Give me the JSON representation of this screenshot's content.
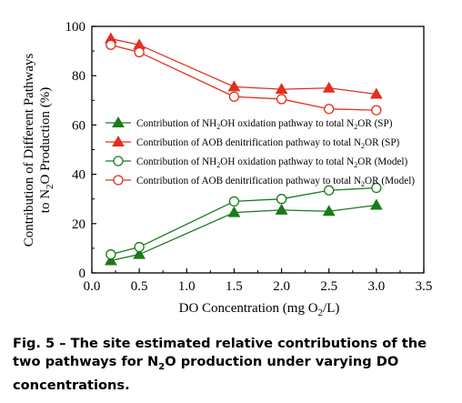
{
  "chart_data": {
    "type": "line",
    "x": [
      0.2,
      0.5,
      1.5,
      2.0,
      2.5,
      3.0
    ],
    "xlim": [
      0,
      3.5
    ],
    "ylim": [
      0,
      100
    ],
    "xticks": [
      "0.0",
      "0.5",
      "1.0",
      "1.5",
      "2.0",
      "2.5",
      "3.0",
      "3.5"
    ],
    "yticks": [
      "0",
      "20",
      "40",
      "60",
      "80",
      "100"
    ],
    "xlabel": {
      "pre": "DO Concentration (mg O",
      "sub": "2",
      "post": "/L)"
    },
    "ylabel": {
      "line1": "Contribution of Different Pathways",
      "line2_pre": "to N",
      "line2_sub": "2",
      "line2_post": "O Production (%)"
    },
    "legend_position": "center",
    "series": [
      {
        "key": "nh2oh-sp",
        "legend": {
          "pre": "Contribution of NH",
          "s1": "2",
          "mid": "OH oxidation pathway to total N",
          "s2": "2",
          "post": "OR (SP)"
        },
        "color": "#1a7a1a",
        "marker": "filled-triangle",
        "values": [
          5,
          7.5,
          24.5,
          25.5,
          25,
          27.5
        ]
      },
      {
        "key": "aob-sp",
        "legend": {
          "pre": "Contribution of AOB denitrification pathway to total N",
          "s1": "2",
          "mid": "OR (SP)",
          "s2": "",
          "post": ""
        },
        "color": "#e03020",
        "marker": "filled-triangle",
        "values": [
          95,
          92.5,
          75.5,
          74.5,
          75,
          72.5
        ]
      },
      {
        "key": "nh2oh-model",
        "legend": {
          "pre": "Contribution of  NH",
          "s1": "2",
          "mid": "OH oxidation pathway to total N",
          "s2": "2",
          "post": "OR (Model)"
        },
        "color": "#1a7a1a",
        "marker": "open-circle",
        "values": [
          7.5,
          10.5,
          29,
          30,
          33.5,
          34.5
        ]
      },
      {
        "key": "aob-model",
        "legend": {
          "pre": "Contribution of AOB denitrification pathway to total N",
          "s1": "2",
          "mid": "OR (Model)",
          "s2": "",
          "post": ""
        },
        "color": "#e03020",
        "marker": "open-circle",
        "values": [
          92.5,
          89.5,
          71.5,
          70.5,
          66.5,
          66
        ]
      }
    ]
  },
  "caption": {
    "fig": "Fig. 5",
    "dash": " – ",
    "text_pre": "The site estimated relative contributions of the two pathways for N",
    "sub": "2",
    "text_post": "O production under varying DO concentrations."
  }
}
